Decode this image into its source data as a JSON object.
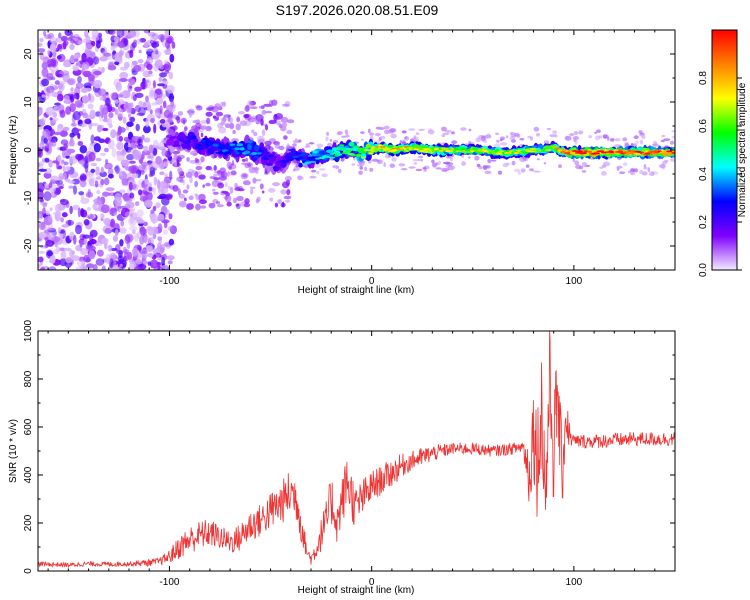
{
  "title": "S197.2026.020.08.51.E09",
  "chart_data": [
    {
      "type": "heatmap",
      "xlabel": "Height of straight line (km)",
      "ylabel": "Frequency (Hz)",
      "xlim": [
        -165,
        150
      ],
      "ylim": [
        -25,
        25
      ],
      "x_ticks": [
        -100,
        0,
        100
      ],
      "y_ticks": [
        -20,
        -10,
        0,
        10,
        20
      ],
      "colorbar": {
        "label": "Normalized spectral amplitude",
        "range": [
          0,
          1
        ],
        "ticks": [
          0.0,
          0.2,
          0.4,
          0.6,
          0.8
        ],
        "colors": [
          "#f3eaff",
          "#8000ff",
          "#0000ff",
          "#00ffff",
          "#00ff00",
          "#ffff00",
          "#ff8000",
          "#ff0000"
        ]
      },
      "ridge": {
        "x": [
          -100,
          -90,
          -80,
          -70,
          -60,
          -50,
          -45,
          -40,
          -35,
          -30,
          -25,
          -20,
          -15,
          -10,
          -5,
          0,
          5,
          10,
          20,
          30,
          40,
          50,
          60,
          70,
          80,
          85,
          90,
          95,
          100,
          110,
          120,
          130,
          140,
          150
        ],
        "freq": [
          2,
          2,
          1,
          0,
          0.5,
          -2,
          -3,
          -1,
          -2,
          -2,
          -1,
          -1,
          0,
          0,
          -0.5,
          0,
          0.5,
          0,
          0.5,
          0,
          0,
          0,
          -0.5,
          -0.5,
          0,
          0,
          0.5,
          -0.5,
          -0.5,
          -0.5,
          -0.5,
          -0.5,
          -0.5,
          -0.5
        ],
        "amplitude": [
          0.15,
          0.25,
          0.3,
          0.35,
          0.4,
          0.25,
          0.2,
          0.3,
          0.35,
          0.4,
          0.45,
          0.5,
          0.55,
          0.6,
          0.65,
          0.75,
          0.8,
          0.85,
          0.8,
          0.75,
          0.7,
          0.7,
          0.7,
          0.7,
          0.65,
          0.6,
          0.7,
          0.9,
          0.95,
          0.97,
          0.98,
          0.98,
          0.98,
          0.98
        ]
      }
    },
    {
      "type": "line",
      "xlabel": "Height of straight line (km)",
      "ylabel": "SNR (10 * v/v)",
      "xlim": [
        -165,
        150
      ],
      "ylim": [
        0,
        1000
      ],
      "x_ticks": [
        -100,
        0,
        100
      ],
      "y_ticks": [
        0,
        200,
        400,
        600,
        800,
        1000
      ],
      "color": "#ee3333",
      "series": [
        {
          "name": "SNR",
          "x": [
            -165,
            -150,
            -140,
            -130,
            -120,
            -110,
            -105,
            -100,
            -95,
            -90,
            -85,
            -80,
            -75,
            -70,
            -65,
            -60,
            -55,
            -50,
            -45,
            -40,
            -37,
            -35,
            -32,
            -30,
            -28,
            -25,
            -22,
            -20,
            -17,
            -15,
            -12,
            -10,
            -8,
            -5,
            0,
            5,
            10,
            15,
            20,
            25,
            30,
            35,
            40,
            50,
            60,
            70,
            75,
            78,
            80,
            82,
            84,
            86,
            88,
            90,
            92,
            94,
            96,
            98,
            100,
            110,
            120,
            130,
            140,
            150
          ],
          "y": [
            30,
            25,
            30,
            28,
            30,
            35,
            40,
            60,
            100,
            130,
            150,
            160,
            140,
            120,
            140,
            190,
            210,
            250,
            280,
            330,
            300,
            200,
            80,
            50,
            80,
            150,
            220,
            300,
            200,
            280,
            380,
            320,
            260,
            300,
            350,
            380,
            410,
            440,
            460,
            475,
            490,
            500,
            510,
            510,
            500,
            510,
            520,
            400,
            600,
            450,
            700,
            300,
            800,
            500,
            750,
            400,
            650,
            560,
            540,
            540,
            545,
            550,
            550,
            550
          ],
          "spread": [
            10,
            10,
            10,
            10,
            10,
            15,
            15,
            30,
            50,
            60,
            60,
            60,
            50,
            50,
            60,
            70,
            70,
            80,
            90,
            100,
            100,
            80,
            30,
            25,
            40,
            70,
            90,
            110,
            90,
            100,
            120,
            110,
            90,
            80,
            70,
            60,
            60,
            50,
            40,
            40,
            35,
            30,
            25,
            25,
            25,
            25,
            30,
            150,
            200,
            250,
            250,
            280,
            220,
            250,
            200,
            180,
            150,
            40,
            30,
            30,
            30,
            30,
            30,
            30
          ]
        }
      ]
    }
  ]
}
